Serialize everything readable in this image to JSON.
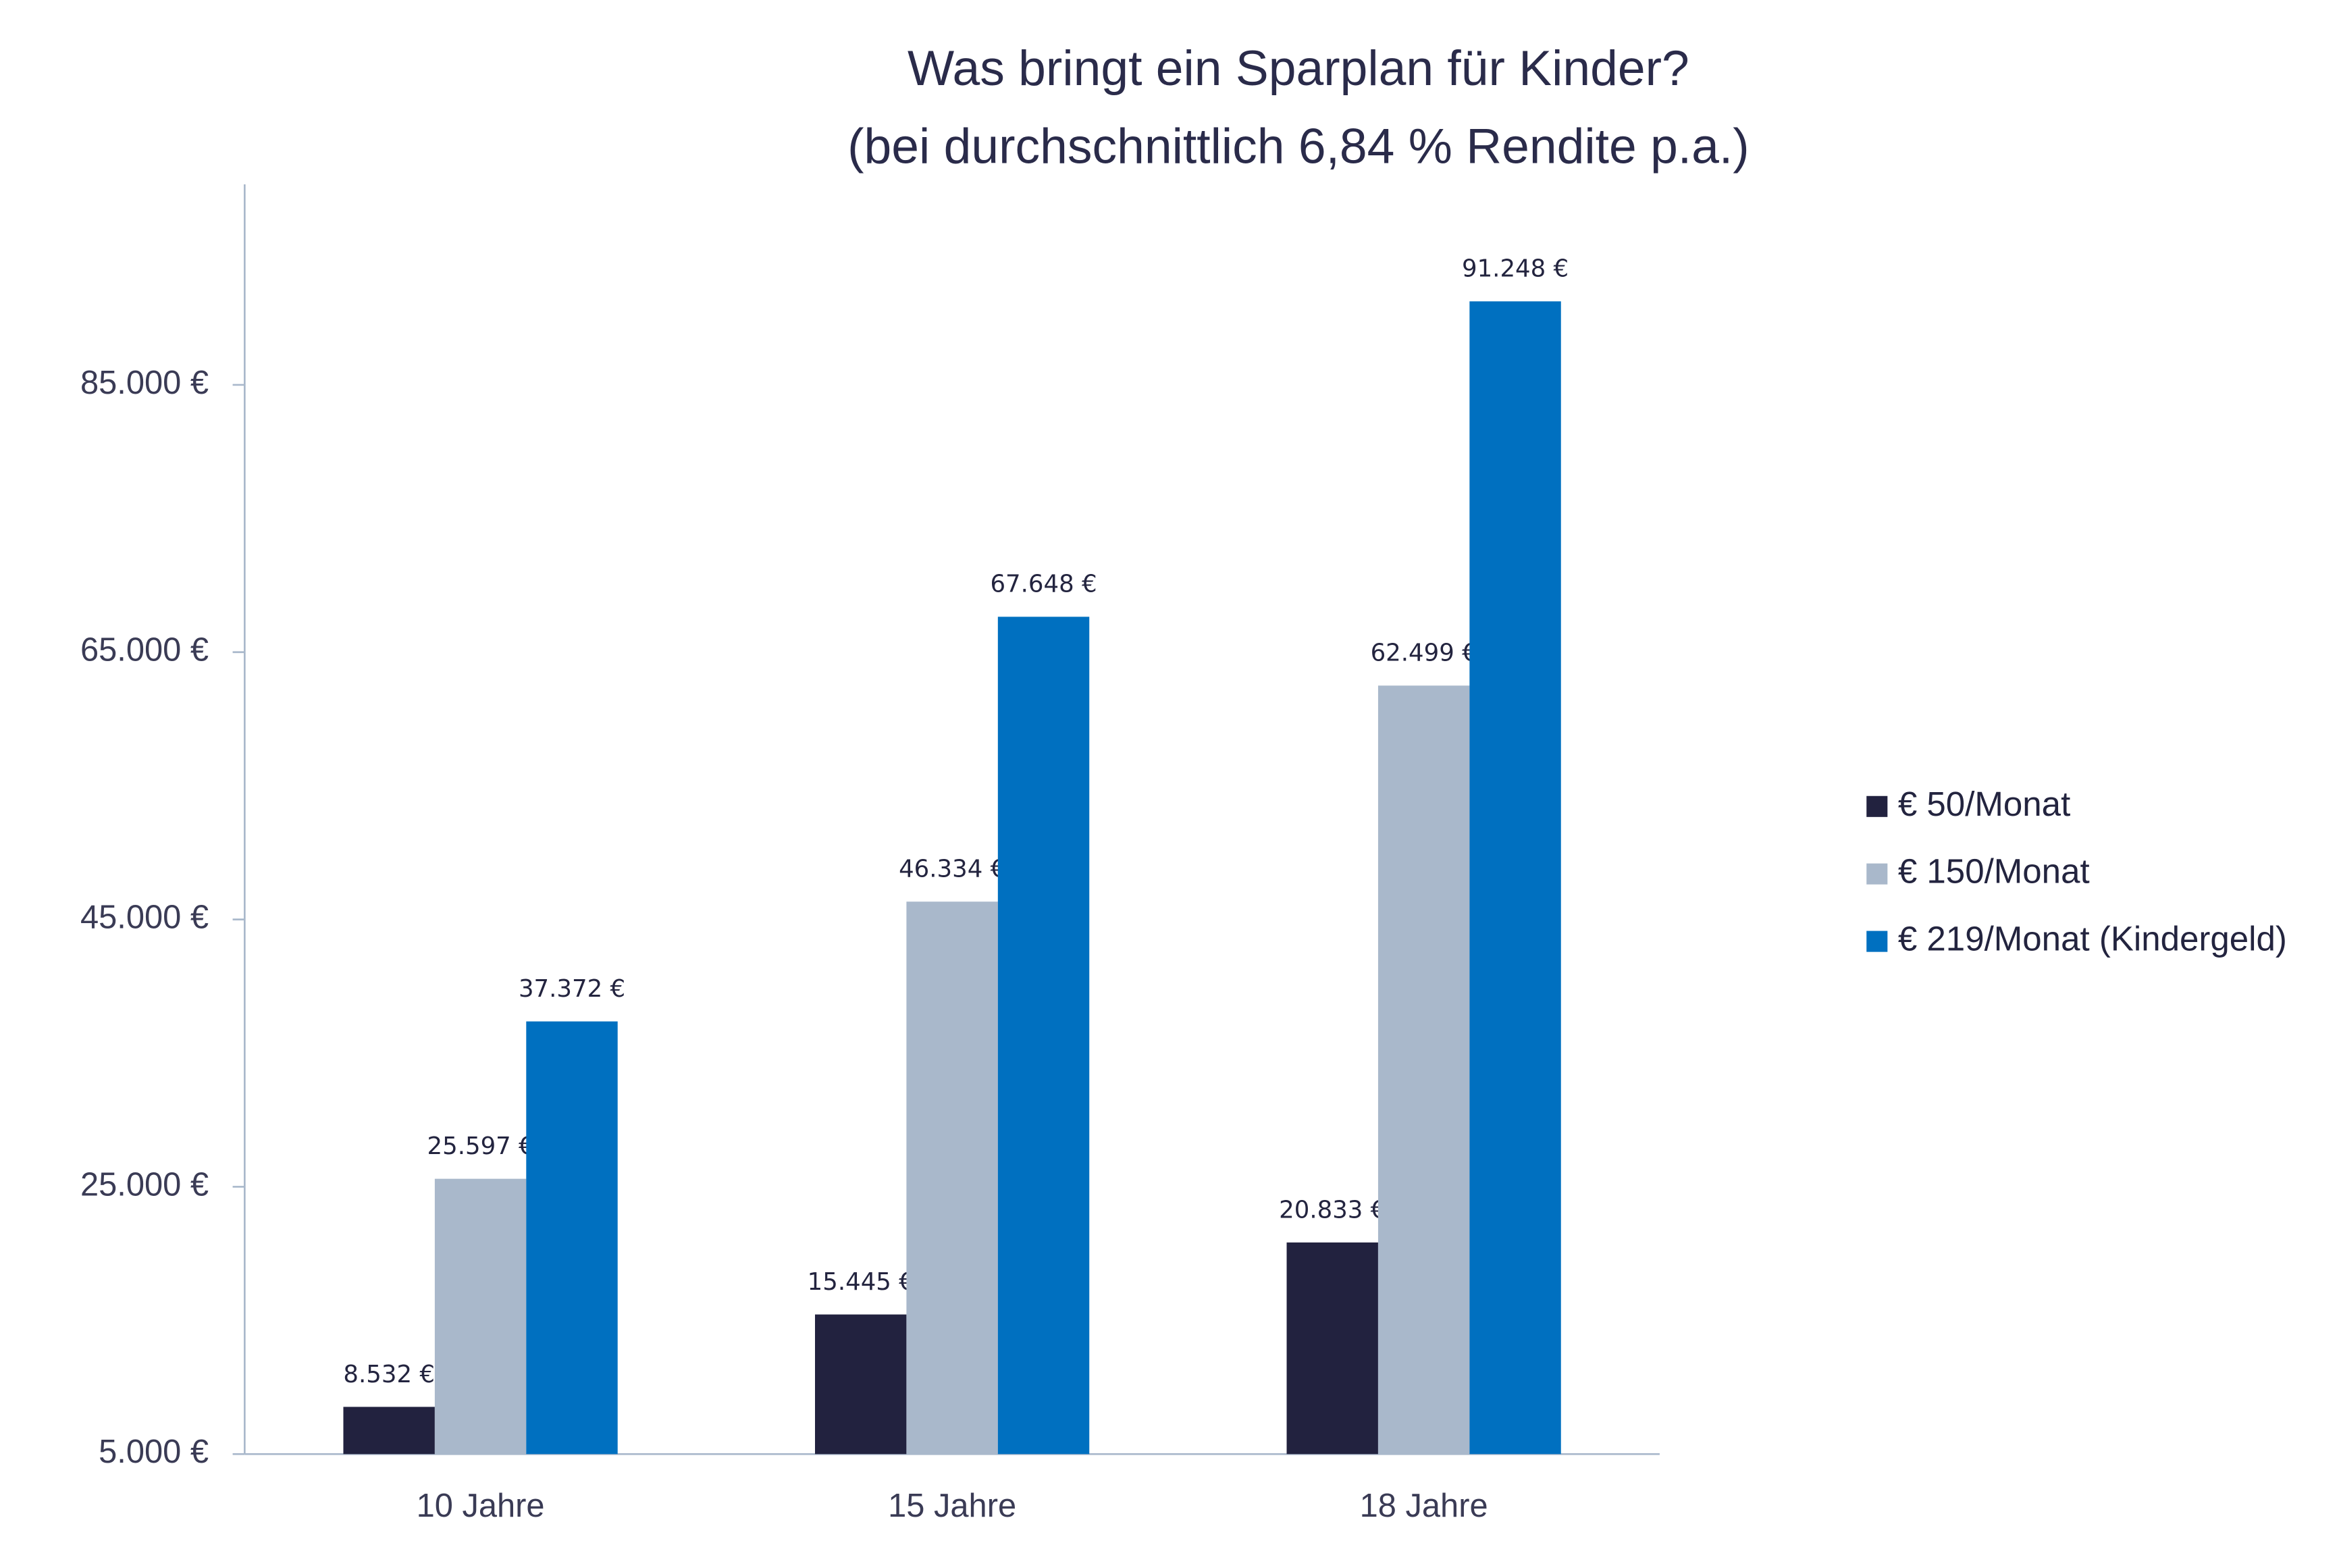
{
  "chart_data": {
    "type": "bar",
    "title": "Was bringt ein Sparplan für Kinder?",
    "subtitle": "(bei durchschnittlich 6,84 % Rendite p.a.)",
    "categories": [
      "10 Jahre",
      "15 Jahre",
      "18 Jahre"
    ],
    "series": [
      {
        "name": "€ 50/Monat",
        "color": "#22223f",
        "values": [
          8532,
          15445,
          20833
        ],
        "value_labels": [
          "8.532 €",
          "15.445 €",
          "20.833 €"
        ]
      },
      {
        "name": "€ 150/Monat",
        "color": "#a9b8cb",
        "values": [
          25597,
          46334,
          62499
        ],
        "value_labels": [
          "25.597 €",
          "46.334 €",
          "62.499 €"
        ]
      },
      {
        "name": "€ 219/Monat (Kindergeld)",
        "color": "#0070c0",
        "values": [
          37372,
          67648,
          91248
        ],
        "value_labels": [
          "37.372 €",
          "67.648 €",
          "91.248 €"
        ]
      }
    ],
    "ylim": [
      5000,
      100000
    ],
    "yticks": [
      {
        "value": 5000,
        "label": "5.000 €"
      },
      {
        "value": 25000,
        "label": "25.000 €"
      },
      {
        "value": 45000,
        "label": "45.000 €"
      },
      {
        "value": 65000,
        "label": "65.000 €"
      },
      {
        "value": 85000,
        "label": "85.000 €"
      }
    ],
    "grid": false,
    "legend": "right"
  }
}
